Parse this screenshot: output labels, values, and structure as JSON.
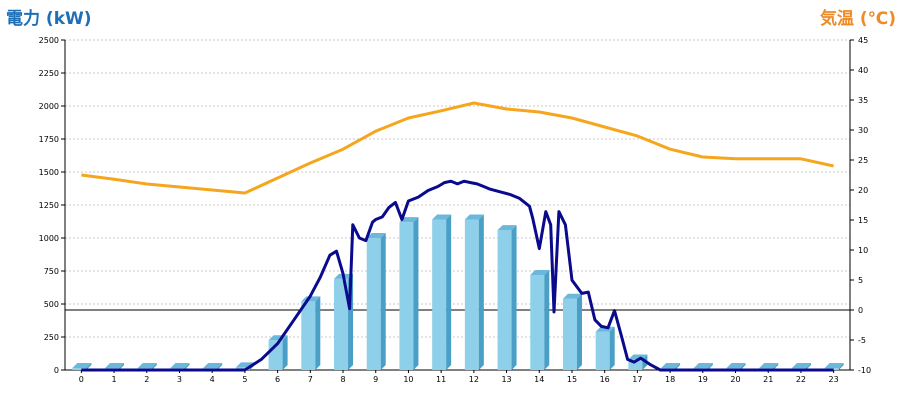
{
  "chart_data": {
    "type": "bar",
    "ylabel_left": "電力 (kW)",
    "ylabel_right": "気温 (℃)",
    "ylabel_left_color": "#1e6fb5",
    "ylabel_right_color": "#f08a24",
    "categories": [
      "0",
      "1",
      "2",
      "3",
      "4",
      "5",
      "6",
      "7",
      "8",
      "9",
      "10",
      "11",
      "12",
      "13",
      "14",
      "15",
      "16",
      "17",
      "18",
      "19",
      "20",
      "21",
      "22",
      "23"
    ],
    "y_left": {
      "min": 0,
      "max": 2500,
      "ticks": [
        0,
        250,
        500,
        750,
        1000,
        1250,
        1500,
        1750,
        2000,
        2250,
        2500
      ]
    },
    "y_right": {
      "min": -10,
      "max": 45,
      "ticks": [
        -10,
        -5,
        0,
        5,
        10,
        15,
        20,
        25,
        30,
        35,
        40,
        45
      ]
    },
    "grid": true,
    "series": [
      {
        "kind": "bar",
        "axis": "left",
        "color": "#8ecfea",
        "values": [
          15,
          15,
          15,
          15,
          15,
          20,
          225,
          520,
          690,
          1000,
          1120,
          1140,
          1140,
          1060,
          720,
          540,
          290,
          80,
          15,
          15,
          15,
          15,
          15,
          15
        ]
      },
      {
        "kind": "line",
        "axis": "left",
        "color": "#0a0a8c",
        "x": [
          0,
          5,
          5.5,
          6,
          6.5,
          7,
          7.3,
          7.6,
          7.8,
          8,
          8.2,
          8.3,
          8.5,
          8.7,
          8.9,
          9,
          9.2,
          9.4,
          9.6,
          9.8,
          10,
          10.3,
          10.6,
          10.9,
          11.1,
          11.3,
          11.5,
          11.7,
          11.9,
          12.1,
          12.3,
          12.5,
          12.8,
          13.1,
          13.4,
          13.7,
          13.8,
          14,
          14.2,
          14.35,
          14.45,
          14.6,
          14.8,
          15,
          15.3,
          15.5,
          15.7,
          15.9,
          16.1,
          16.3,
          16.5,
          16.7,
          16.9,
          17.1,
          17.4,
          17.7,
          23
        ],
        "values": [
          0,
          0,
          80,
          200,
          380,
          560,
          700,
          870,
          900,
          730,
          465,
          1100,
          1000,
          980,
          1120,
          1140,
          1160,
          1230,
          1270,
          1140,
          1280,
          1310,
          1360,
          1390,
          1420,
          1430,
          1410,
          1430,
          1420,
          1410,
          1390,
          1370,
          1350,
          1330,
          1300,
          1240,
          1150,
          920,
          1200,
          1100,
          440,
          1200,
          1100,
          680,
          580,
          590,
          380,
          330,
          320,
          450,
          270,
          80,
          60,
          90,
          40,
          0,
          0
        ]
      },
      {
        "kind": "line",
        "axis": "right",
        "color": "#f6a61e",
        "values": [
          22.5,
          21.8,
          21.0,
          20.5,
          20.0,
          19.5,
          22.0,
          24.5,
          26.8,
          29.8,
          32.0,
          33.2,
          34.5,
          33.5,
          33.0,
          32.0,
          30.5,
          29.0,
          26.8,
          25.5,
          25.2,
          25.2,
          25.2,
          24.0
        ]
      }
    ]
  }
}
